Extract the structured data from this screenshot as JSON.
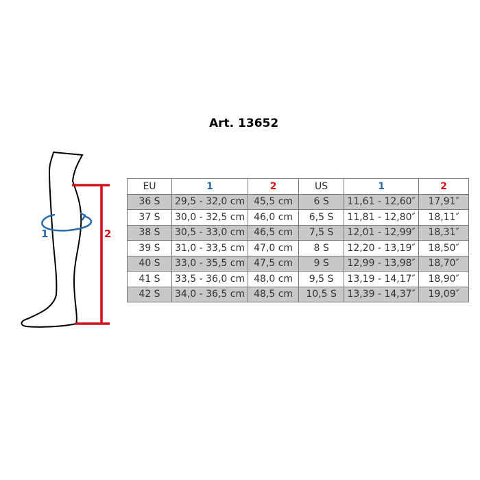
{
  "title": "Art. 13652",
  "diagram": {
    "label_1": "1",
    "label_2": "2",
    "color_1": "#2a6aa8",
    "color_2": "#d0121b"
  },
  "table": {
    "headers": [
      "EU",
      "1",
      "2",
      "US",
      "1",
      "2"
    ],
    "rows": [
      [
        "36 S",
        "29,5 - 32,0 cm",
        "45,5 cm",
        "6 S",
        "11,61 - 12,60″",
        "17,91″"
      ],
      [
        "37 S",
        "30,0 - 32,5 cm",
        "46,0 cm",
        "6,5 S",
        "11,81 - 12,80″",
        "18,11″"
      ],
      [
        "38 S",
        "30,5 - 33,0 cm",
        "46,5 cm",
        "7,5 S",
        "12,01 - 12,99″",
        "18,31″"
      ],
      [
        "39 S",
        "31,0 - 33,5 cm",
        "47,0 cm",
        "8 S",
        "12,20 - 13,19″",
        "18,50″"
      ],
      [
        "40 S",
        "33,0 - 35,5 cm",
        "47,5 cm",
        "9 S",
        "12,99 - 13,98″",
        "18,70″"
      ],
      [
        "41 S",
        "33,5 - 36,0 cm",
        "48,0 cm",
        "9,5 S",
        "13,19 - 14,17″",
        "18,90″"
      ],
      [
        "42 S",
        "34,0 - 36,5 cm",
        "48,5 cm",
        "10,5 S",
        "13,39 - 14,37″",
        "19,09″"
      ]
    ]
  }
}
